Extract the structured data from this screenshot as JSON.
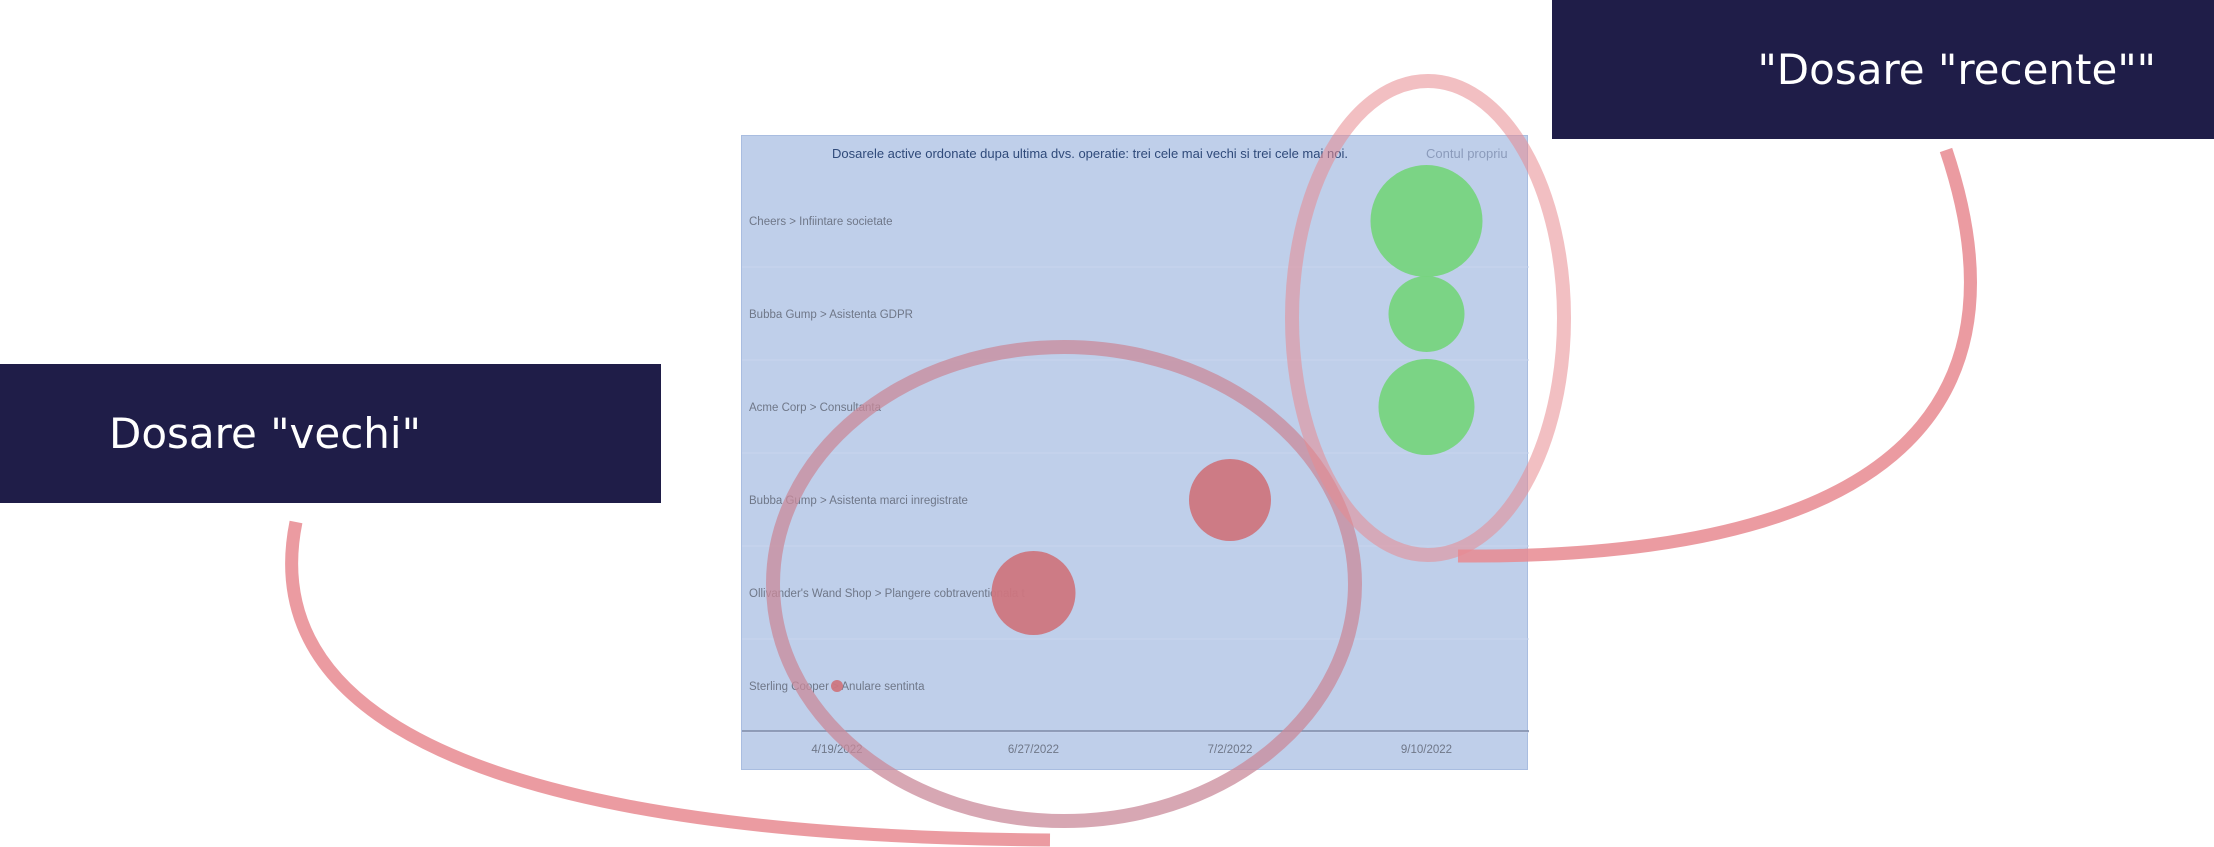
{
  "callouts": {
    "old_label": "Dosare \"vechi\"",
    "new_label": "\"Dosare \"recente\"\""
  },
  "colors": {
    "panel_bg": "#bfcfea",
    "box_bg": "#1f1d48",
    "old_bubble": "#cd7680",
    "new_bubble": "#77d47f",
    "highlight": "#e88a90"
  },
  "chart_data": {
    "type": "scatter",
    "title": "Dosarele active ordonate dupa ultima dvs. operatie: trei cele mai vechi si trei cele mai noi.",
    "legend_text": "Contul propriu",
    "categories": [
      "Cheers > Infiintare societate",
      "Bubba Gump > Asistenta GDPR",
      "Acme Corp > Consultanta",
      "Bubba Gump > Asistenta marci inregistrate",
      "Ollivander's Wand Shop > Plangere cobtraventionala t",
      "Sterling Cooper > Anulare sentinta"
    ],
    "x_ticks": [
      "4/19/2022",
      "6/27/2022",
      "7/2/2022",
      "9/10/2022"
    ],
    "points": [
      {
        "category": "Cheers > Infiintare societate",
        "x": "9/10/2022",
        "size": 56,
        "group": "recent"
      },
      {
        "category": "Bubba Gump > Asistenta GDPR",
        "x": "9/10/2022",
        "size": 38,
        "group": "recent"
      },
      {
        "category": "Acme Corp > Consultanta",
        "x": "9/10/2022",
        "size": 48,
        "group": "recent"
      },
      {
        "category": "Bubba Gump > Asistenta marci inregistrate",
        "x": "7/2/2022",
        "size": 41,
        "group": "old"
      },
      {
        "category": "Ollivander's Wand Shop > Plangere cobtraventionala t",
        "x": "6/27/2022",
        "size": 42,
        "group": "old"
      },
      {
        "category": "Sterling Cooper > Anulare sentinta",
        "x": "4/19/2022",
        "size": 6,
        "group": "old"
      }
    ]
  }
}
